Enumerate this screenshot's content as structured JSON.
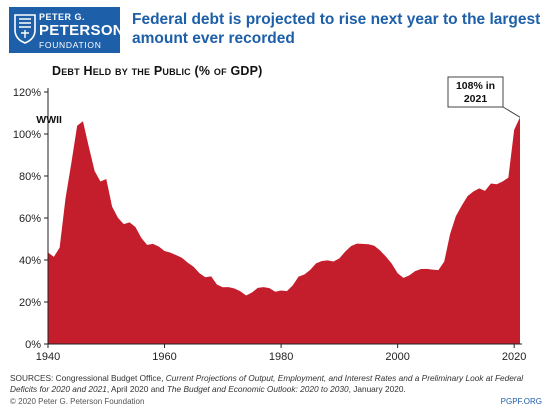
{
  "logo": {
    "line1": "PETER G.",
    "line2": "PETERSON",
    "line3": "FOUNDATION",
    "icon": "shield-icon"
  },
  "header": {
    "title": "Federal debt is projected to rise next year to the largest amount ever recorded"
  },
  "chart_data": {
    "type": "area",
    "title": "Debt Held by the Public (% of GDP)",
    "xlabel": "",
    "ylabel": "",
    "xlim": [
      1940,
      2021
    ],
    "ylim": [
      0,
      120
    ],
    "xticks": [
      1940,
      1960,
      1980,
      2000,
      2020
    ],
    "yticks": [
      0,
      20,
      40,
      60,
      80,
      100,
      120
    ],
    "ytick_labels": [
      "0%",
      "20%",
      "40%",
      "60%",
      "80%",
      "100%",
      "120%"
    ],
    "grid": false,
    "series": [
      {
        "color": "#c41e2d",
        "x": [
          1940,
          1941,
          1942,
          1943,
          1944,
          1945,
          1946,
          1947,
          1948,
          1949,
          1950,
          1951,
          1952,
          1953,
          1954,
          1955,
          1956,
          1957,
          1958,
          1959,
          1960,
          1961,
          1962,
          1963,
          1964,
          1965,
          1966,
          1967,
          1968,
          1969,
          1970,
          1971,
          1972,
          1973,
          1974,
          1975,
          1976,
          1977,
          1978,
          1979,
          1980,
          1981,
          1982,
          1983,
          1984,
          1985,
          1986,
          1987,
          1988,
          1989,
          1990,
          1991,
          1992,
          1993,
          1994,
          1995,
          1996,
          1997,
          1998,
          1999,
          2000,
          2001,
          2002,
          2003,
          2004,
          2005,
          2006,
          2007,
          2008,
          2009,
          2010,
          2011,
          2012,
          2013,
          2014,
          2015,
          2016,
          2017,
          2018,
          2019,
          2020,
          2021
        ],
        "y": [
          43.6,
          41.5,
          45.9,
          69.2,
          86.1,
          103.9,
          106.1,
          93.9,
          82.4,
          77.4,
          78.6,
          65.4,
          60.1,
          57.1,
          57.9,
          55.7,
          50.6,
          47.2,
          47.7,
          46.4,
          44.3,
          43.5,
          42.3,
          41.0,
          38.7,
          36.7,
          33.7,
          31.8,
          32.2,
          28.3,
          27.0,
          27.1,
          26.4,
          25.1,
          23.1,
          24.5,
          26.7,
          27.1,
          26.6,
          24.9,
          25.5,
          25.2,
          27.9,
          32.1,
          33.1,
          35.3,
          38.4,
          39.5,
          39.8,
          39.3,
          40.8,
          44.0,
          46.6,
          47.8,
          47.7,
          47.5,
          46.8,
          44.5,
          41.6,
          38.2,
          33.7,
          31.5,
          32.7,
          34.7,
          35.7,
          35.8,
          35.4,
          35.2,
          39.3,
          52.3,
          60.9,
          65.9,
          70.4,
          72.6,
          74.1,
          72.9,
          76.4,
          76.1,
          77.4,
          79.2,
          102.0,
          108.0
        ]
      }
    ],
    "annotations": [
      {
        "label": "WWII",
        "x": 1945,
        "y": 106.1
      },
      {
        "label": "108% in 2021",
        "x": 2021,
        "y": 108.0
      }
    ]
  },
  "sources": {
    "text_a": "SOURCES: Congressional Budget Office, ",
    "text_b": "Current Projections of Output, Employment, and Interest Rates and a Preliminary Look at Federal Deficits for 2020 and 2021",
    "text_c": ", April 2020 and ",
    "text_d": "The Budget and Economic Outlook: 2020 to 2030",
    "text_e": ", January 2020."
  },
  "footer": {
    "copyright": "© 2020 Peter G. Peterson Foundation",
    "site": "PGPF.ORG"
  }
}
